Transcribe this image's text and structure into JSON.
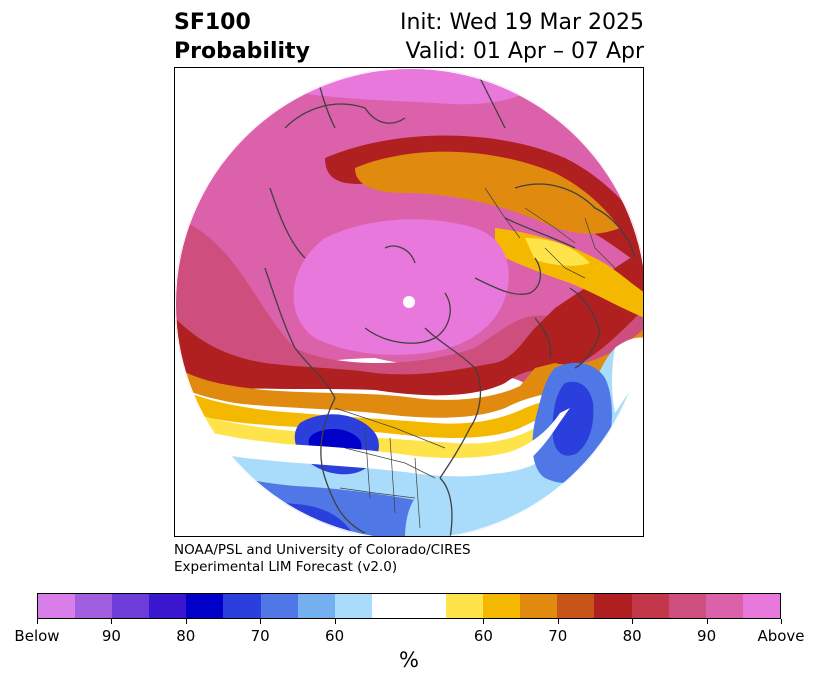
{
  "title": {
    "line1_left": "SF100",
    "line2_left": "Probability",
    "line1_right": "Init: Wed 19 Mar 2025",
    "line2_right": "Valid: 01 Apr – 07 Apr"
  },
  "credit": {
    "line1": "NOAA/PSL and University of Colorado/CIRES",
    "line2": "Experimental LIM Forecast (v2.0)"
  },
  "colorbar": {
    "colors": [
      "#d97ee8",
      "#a15ee0",
      "#6e3dd9",
      "#3a17cf",
      "#0000c8",
      "#2a3fdc",
      "#4f78e6",
      "#74b0f0",
      "#a8dcfa",
      "#ffffff",
      "#ffffff",
      "#ffe34a",
      "#f5b800",
      "#e08a10",
      "#c75418",
      "#b02020",
      "#c2384a",
      "#ce4f7e",
      "#db62aa",
      "#e878dc"
    ],
    "tick_labels": [
      "Below",
      "90",
      "80",
      "70",
      "60",
      "60",
      "70",
      "80",
      "90",
      "Above"
    ],
    "unit": "%"
  },
  "map": {
    "projection": "north-polar-stereographic",
    "colors": {
      "above_max": "#e878dc",
      "above_high": "#db62aa",
      "above_mid": "#ce4f7e",
      "above_red": "#b02020",
      "above_orange": "#e08a10",
      "above_yellow": "#f5b800",
      "below_light": "#a8dcfa",
      "below_mid": "#4f78e6",
      "below_dark": "#2a3fdc",
      "below_max": "#0000c8",
      "coast": "#404040"
    }
  }
}
